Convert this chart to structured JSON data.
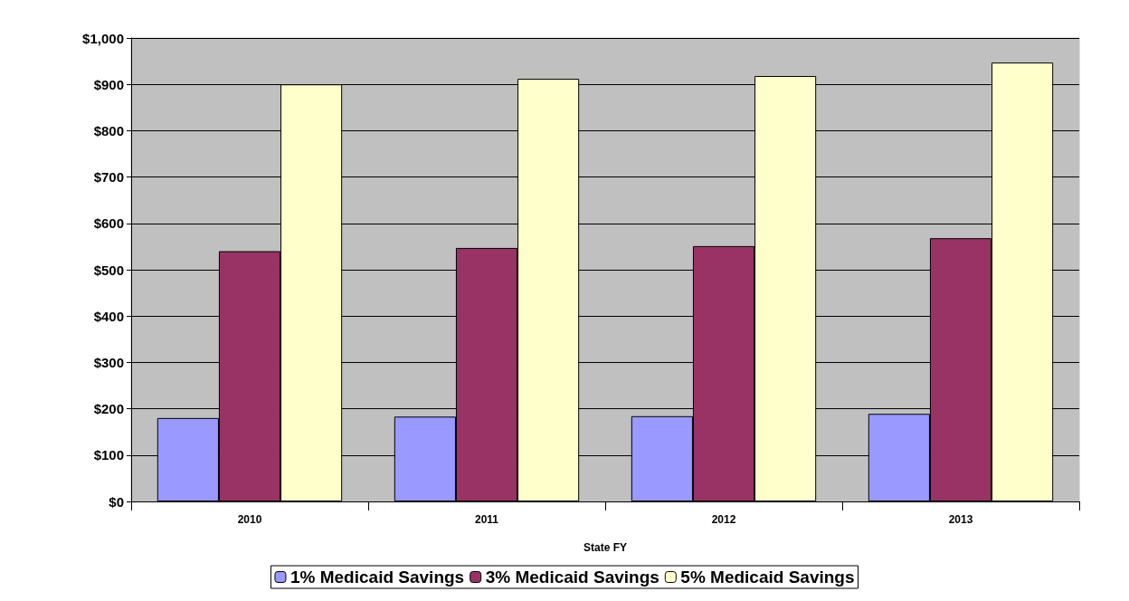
{
  "chart_data": {
    "type": "bar",
    "xlabel": "State FY",
    "categories": [
      "2010",
      "2011",
      "2012",
      "2013"
    ],
    "series": [
      {
        "name": "1% Medicaid Savings",
        "color": "#9999ff",
        "values": [
          180,
          183,
          184,
          189
        ]
      },
      {
        "name": "3% Medicaid Savings",
        "color": "#993366",
        "values": [
          540,
          547,
          551,
          568
        ]
      },
      {
        "name": "5% Medicaid Savings",
        "color": "#ffffcc",
        "values": [
          900,
          912,
          918,
          947
        ]
      }
    ],
    "ylim": [
      0,
      1000
    ],
    "yticks": [
      {
        "value": 0,
        "label": "$0"
      },
      {
        "value": 100,
        "label": "$100"
      },
      {
        "value": 200,
        "label": "$200"
      },
      {
        "value": 300,
        "label": "$300"
      },
      {
        "value": 400,
        "label": "$400"
      },
      {
        "value": 500,
        "label": "$500"
      },
      {
        "value": 600,
        "label": "$600"
      },
      {
        "value": 700,
        "label": "$700"
      },
      {
        "value": 800,
        "label": "$800"
      },
      {
        "value": 900,
        "label": "$900"
      },
      {
        "value": 1000,
        "label": "$1,000"
      }
    ],
    "grid": "y",
    "legend": "bottom"
  }
}
